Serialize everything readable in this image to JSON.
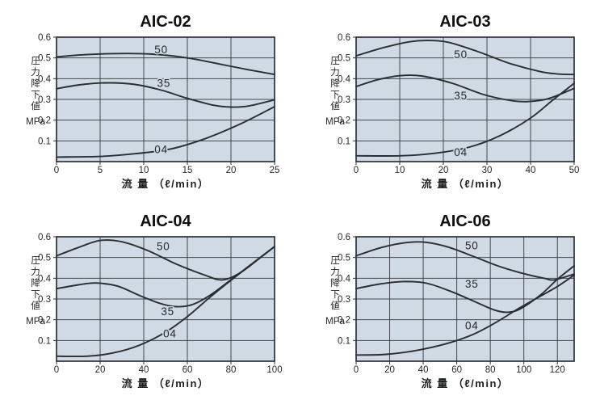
{
  "styles": {
    "background": "#ffffff",
    "plot_fill": "#cfdae4",
    "grid_color": "#42474d",
    "border_color": "#2d3136",
    "curve_color": "#2a2e33",
    "text_color": "#26292c"
  },
  "axes_shared": {
    "ylabel_vertical": "圧力降下値",
    "ylabel_unit": "MPa",
    "xlabel": "流 量 （ℓ/min）",
    "origin_label": "0",
    "y_ticks": [
      0.1,
      0.2,
      0.3,
      0.4,
      0.5,
      0.6
    ]
  },
  "chart_data": [
    {
      "type": "line",
      "title": "AIC-02",
      "xlabel": "流 量 （ℓ/min）",
      "ylabel": "圧力降下値 MPa",
      "xlim": [
        0,
        25
      ],
      "ylim": [
        0,
        0.6
      ],
      "x_ticks": [
        0,
        5,
        10,
        15,
        20,
        25
      ],
      "y_ticks": [
        0.1,
        0.2,
        0.3,
        0.4,
        0.5,
        0.6
      ],
      "grid": true,
      "series": [
        {
          "name": "50",
          "label_pos": [
            12,
            0.54
          ],
          "points": [
            [
              0,
              0.505
            ],
            [
              3,
              0.515
            ],
            [
              7,
              0.521
            ],
            [
              11,
              0.518
            ],
            [
              15,
              0.5
            ],
            [
              19,
              0.468
            ],
            [
              22,
              0.443
            ],
            [
              25,
              0.42
            ]
          ]
        },
        {
          "name": "35",
          "label_pos": [
            12.3,
            0.378
          ],
          "points": [
            [
              0,
              0.352
            ],
            [
              3,
              0.372
            ],
            [
              6,
              0.38
            ],
            [
              9,
              0.372
            ],
            [
              12,
              0.345
            ],
            [
              15,
              0.305
            ],
            [
              18,
              0.272
            ],
            [
              20,
              0.263
            ],
            [
              22,
              0.268
            ],
            [
              25,
              0.298
            ]
          ]
        },
        {
          "name": "04",
          "label_pos": [
            12,
            0.058
          ],
          "points": [
            [
              0,
              0.022
            ],
            [
              5,
              0.025
            ],
            [
              9,
              0.038
            ],
            [
              13,
              0.06
            ],
            [
              17,
              0.11
            ],
            [
              21,
              0.18
            ],
            [
              25,
              0.265
            ]
          ]
        }
      ]
    },
    {
      "type": "line",
      "title": "AIC-03",
      "xlabel": "流 量 （ℓ/min）",
      "ylabel": "圧力降下値 MPa",
      "xlim": [
        0,
        50
      ],
      "ylim": [
        0,
        0.6
      ],
      "x_ticks": [
        0,
        10,
        20,
        30,
        40,
        50
      ],
      "y_ticks": [
        0.1,
        0.2,
        0.3,
        0.4,
        0.5,
        0.6
      ],
      "grid": true,
      "series": [
        {
          "name": "50",
          "label_pos": [
            24,
            0.517
          ],
          "points": [
            [
              0,
              0.51
            ],
            [
              6,
              0.548
            ],
            [
              12,
              0.577
            ],
            [
              16,
              0.584
            ],
            [
              21,
              0.576
            ],
            [
              28,
              0.53
            ],
            [
              35,
              0.475
            ],
            [
              42,
              0.435
            ],
            [
              46,
              0.423
            ],
            [
              50,
              0.42
            ]
          ]
        },
        {
          "name": "35",
          "label_pos": [
            24,
            0.318
          ],
          "points": [
            [
              0,
              0.362
            ],
            [
              5,
              0.395
            ],
            [
              10,
              0.414
            ],
            [
              15,
              0.413
            ],
            [
              22,
              0.378
            ],
            [
              29,
              0.325
            ],
            [
              35,
              0.296
            ],
            [
              39,
              0.289
            ],
            [
              44,
              0.303
            ],
            [
              50,
              0.353
            ]
          ]
        },
        {
          "name": "04",
          "label_pos": [
            24,
            0.044
          ],
          "points": [
            [
              0,
              0.028
            ],
            [
              10,
              0.028
            ],
            [
              18,
              0.04
            ],
            [
              26,
              0.07
            ],
            [
              33,
              0.125
            ],
            [
              40,
              0.21
            ],
            [
              45,
              0.295
            ],
            [
              50,
              0.378
            ]
          ]
        }
      ]
    },
    {
      "type": "line",
      "title": "AIC-04",
      "xlabel": "流 量 （ℓ/min）",
      "ylabel": "圧力降下値 MPa",
      "xlim": [
        0,
        100
      ],
      "ylim": [
        0,
        0.6
      ],
      "x_ticks": [
        0,
        20,
        40,
        60,
        80,
        100
      ],
      "y_ticks": [
        0.1,
        0.2,
        0.3,
        0.4,
        0.5,
        0.6
      ],
      "grid": true,
      "series": [
        {
          "name": "50",
          "label_pos": [
            49,
            0.553
          ],
          "points": [
            [
              0,
              0.508
            ],
            [
              10,
              0.548
            ],
            [
              20,
              0.582
            ],
            [
              30,
              0.576
            ],
            [
              42,
              0.533
            ],
            [
              55,
              0.468
            ],
            [
              68,
              0.415
            ],
            [
              76,
              0.392
            ],
            [
              84,
              0.425
            ],
            [
              92,
              0.487
            ],
            [
              100,
              0.553
            ]
          ]
        },
        {
          "name": "35",
          "label_pos": [
            51,
            0.24
          ],
          "points": [
            [
              0,
              0.35
            ],
            [
              10,
              0.368
            ],
            [
              18,
              0.377
            ],
            [
              28,
              0.362
            ],
            [
              38,
              0.317
            ],
            [
              48,
              0.277
            ],
            [
              55,
              0.263
            ],
            [
              62,
              0.272
            ],
            [
              70,
              0.315
            ],
            [
              80,
              0.393
            ],
            [
              90,
              0.473
            ],
            [
              100,
              0.553
            ]
          ]
        },
        {
          "name": "04",
          "label_pos": [
            52,
            0.133
          ],
          "points": [
            [
              0,
              0.024
            ],
            [
              14,
              0.024
            ],
            [
              26,
              0.04
            ],
            [
              38,
              0.077
            ],
            [
              50,
              0.14
            ],
            [
              60,
              0.215
            ],
            [
              70,
              0.305
            ],
            [
              80,
              0.39
            ],
            [
              90,
              0.472
            ],
            [
              100,
              0.553
            ]
          ]
        }
      ]
    },
    {
      "type": "line",
      "title": "AIC-06",
      "xlabel": "流 量 （ℓ/min）",
      "ylabel": "圧力降下値 MPa",
      "xlim": [
        0,
        130
      ],
      "ylim": [
        0,
        0.6
      ],
      "x_ticks": [
        0,
        20,
        40,
        60,
        80,
        100,
        120
      ],
      "y_ticks": [
        0.1,
        0.2,
        0.3,
        0.4,
        0.5,
        0.6
      ],
      "grid": true,
      "series": [
        {
          "name": "50",
          "label_pos": [
            69,
            0.557
          ],
          "points": [
            [
              0,
              0.508
            ],
            [
              15,
              0.548
            ],
            [
              30,
              0.572
            ],
            [
              42,
              0.573
            ],
            [
              55,
              0.55
            ],
            [
              70,
              0.505
            ],
            [
              85,
              0.458
            ],
            [
              100,
              0.422
            ],
            [
              112,
              0.4
            ],
            [
              118,
              0.392
            ],
            [
              130,
              0.42
            ]
          ]
        },
        {
          "name": "35",
          "label_pos": [
            69,
            0.372
          ],
          "points": [
            [
              0,
              0.35
            ],
            [
              14,
              0.372
            ],
            [
              28,
              0.384
            ],
            [
              42,
              0.376
            ],
            [
              56,
              0.338
            ],
            [
              70,
              0.29
            ],
            [
              82,
              0.248
            ],
            [
              90,
              0.236
            ],
            [
              98,
              0.253
            ],
            [
              110,
              0.32
            ],
            [
              120,
              0.395
            ],
            [
              130,
              0.46
            ]
          ]
        },
        {
          "name": "04",
          "label_pos": [
            69,
            0.172
          ],
          "points": [
            [
              0,
              0.03
            ],
            [
              18,
              0.033
            ],
            [
              36,
              0.052
            ],
            [
              54,
              0.085
            ],
            [
              70,
              0.13
            ],
            [
              84,
              0.19
            ],
            [
              96,
              0.25
            ],
            [
              108,
              0.305
            ],
            [
              120,
              0.36
            ],
            [
              130,
              0.415
            ]
          ]
        }
      ]
    }
  ]
}
